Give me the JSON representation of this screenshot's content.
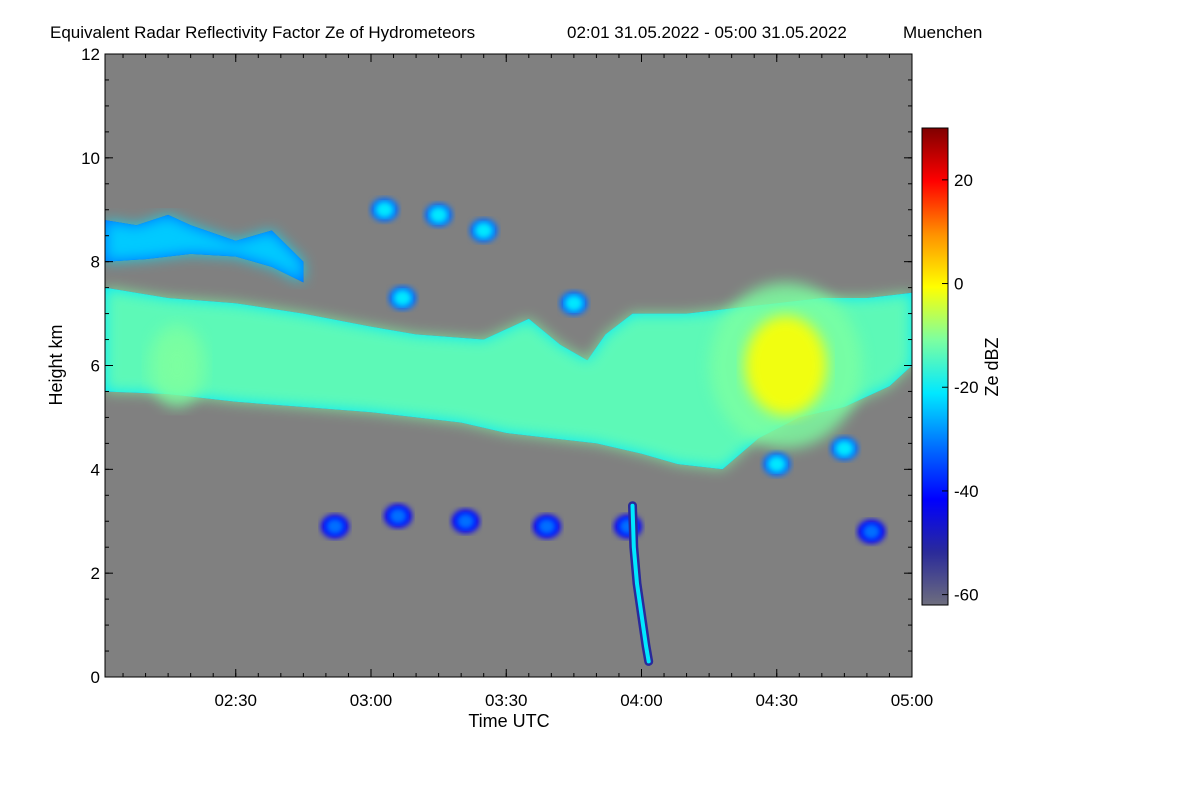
{
  "chart_data": {
    "type": "heatmap",
    "title": "Equivalent Radar Reflectivity Factor Ze of Hydrometeors",
    "time_range": "02:01 31.05.2022 - 05:00 31.05.2022",
    "location": "Muenchen",
    "xlabel": "Time UTC",
    "ylabel": "Height km",
    "x_range_minutes": [
      121,
      300
    ],
    "ylim": [
      0,
      12
    ],
    "x_ticks": [
      {
        "label": "02:30",
        "value": 150
      },
      {
        "label": "03:00",
        "value": 180
      },
      {
        "label": "03:30",
        "value": 210
      },
      {
        "label": "04:00",
        "value": 240
      },
      {
        "label": "04:30",
        "value": 270
      },
      {
        "label": "05:00",
        "value": 300
      }
    ],
    "y_ticks": [
      {
        "label": "0",
        "value": 0
      },
      {
        "label": "2",
        "value": 2
      },
      {
        "label": "4",
        "value": 4
      },
      {
        "label": "6",
        "value": 6
      },
      {
        "label": "8",
        "value": 8
      },
      {
        "label": "10",
        "value": 10
      },
      {
        "label": "12",
        "value": 12
      }
    ],
    "colorbar": {
      "label": "Ze dBZ",
      "range": [
        -62,
        30
      ],
      "ticks": [
        {
          "label": "20",
          "value": 20
        },
        {
          "label": "0",
          "value": 0
        },
        {
          "label": "-20",
          "value": -20
        },
        {
          "label": "-40",
          "value": -40
        },
        {
          "label": "-60",
          "value": -60
        }
      ],
      "colormap": [
        "#6e6e7e",
        "#2a2a9a",
        "#0000ff",
        "#0070ff",
        "#00e8ff",
        "#7dffa0",
        "#ffff00",
        "#ff9000",
        "#ff0000",
        "#800000"
      ]
    },
    "background_color": "#808080",
    "features": [
      {
        "name": "upper-ice-cloud",
        "kind": "layer",
        "top": [
          [
            121,
            8.8
          ],
          [
            128,
            8.7
          ],
          [
            135,
            8.9
          ],
          [
            140,
            8.7
          ],
          [
            150,
            8.4
          ],
          [
            158,
            8.6
          ],
          [
            165,
            8.0
          ]
        ],
        "base": [
          [
            121,
            8.0
          ],
          [
            130,
            8.05
          ],
          [
            140,
            8.15
          ],
          [
            150,
            8.1
          ],
          [
            158,
            7.9
          ],
          [
            165,
            7.6
          ]
        ],
        "ze_dbz": -20
      },
      {
        "name": "mid-level-stratiform-layer",
        "kind": "layer",
        "top": [
          [
            121,
            7.5
          ],
          [
            135,
            7.3
          ],
          [
            150,
            7.2
          ],
          [
            165,
            7.0
          ],
          [
            180,
            6.75
          ],
          [
            190,
            6.6
          ],
          [
            205,
            6.5
          ],
          [
            215,
            6.9
          ],
          [
            222,
            6.4
          ],
          [
            228,
            6.1
          ],
          [
            232,
            6.6
          ],
          [
            238,
            7.0
          ],
          [
            250,
            7.0
          ],
          [
            260,
            7.1
          ],
          [
            270,
            7.2
          ],
          [
            280,
            7.3
          ],
          [
            290,
            7.3
          ],
          [
            300,
            7.4
          ]
        ],
        "base": [
          [
            121,
            5.5
          ],
          [
            135,
            5.45
          ],
          [
            150,
            5.3
          ],
          [
            165,
            5.2
          ],
          [
            180,
            5.1
          ],
          [
            190,
            5.0
          ],
          [
            200,
            4.9
          ],
          [
            210,
            4.7
          ],
          [
            220,
            4.6
          ],
          [
            230,
            4.5
          ],
          [
            240,
            4.3
          ],
          [
            248,
            4.1
          ],
          [
            258,
            4.0
          ],
          [
            266,
            4.6
          ],
          [
            275,
            5.0
          ],
          [
            285,
            5.2
          ],
          [
            295,
            5.6
          ],
          [
            300,
            6.0
          ]
        ],
        "ze_dbz": -15
      },
      {
        "name": "deep-reflectivity-core",
        "kind": "core",
        "center": [
          272,
          6.0
        ],
        "extent_km": [
          1.3,
          1.6
        ],
        "ze_dbz": 0
      },
      {
        "name": "secondary-core",
        "kind": "core",
        "center": [
          137,
          6.0
        ],
        "extent_km": [
          0.5,
          0.8
        ],
        "ze_dbz": -10
      },
      {
        "name": "high-fragments",
        "kind": "patches",
        "points": [
          [
            183,
            9.0
          ],
          [
            195,
            8.9
          ],
          [
            205,
            8.6
          ],
          [
            187,
            7.3
          ],
          [
            225,
            7.2
          ],
          [
            285,
            4.4
          ],
          [
            270,
            4.1
          ]
        ],
        "ze_dbz": -25
      },
      {
        "name": "low-convective-cells",
        "kind": "patches",
        "points": [
          [
            172,
            2.9
          ],
          [
            186,
            3.1
          ],
          [
            201,
            3.0
          ],
          [
            219,
            2.9
          ],
          [
            237,
            2.9
          ],
          [
            291,
            2.8
          ]
        ],
        "ze_dbz": -30
      },
      {
        "name": "precipitation-shaft",
        "kind": "shaft",
        "path": [
          [
            238,
            3.3
          ],
          [
            238.3,
            2.5
          ],
          [
            239,
            1.8
          ],
          [
            240,
            1.2
          ],
          [
            241,
            0.6
          ],
          [
            241.6,
            0.3
          ]
        ],
        "ze_dbz": -35
      }
    ]
  }
}
